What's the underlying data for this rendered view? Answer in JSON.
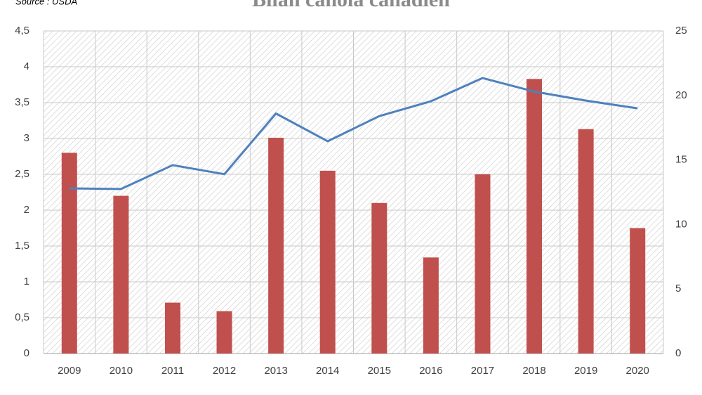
{
  "chart_data": {
    "type": "bar-line",
    "title": "Bilan canola canadien",
    "source": "Source : USDA",
    "categories": [
      "2009",
      "2010",
      "2011",
      "2012",
      "2013",
      "2014",
      "2015",
      "2016",
      "2017",
      "2018",
      "2019",
      "2020"
    ],
    "series": [
      {
        "type": "bar",
        "color": "#c0504d",
        "axis": "y",
        "values": [
          2.8,
          2.2,
          0.71,
          0.59,
          3.01,
          2.55,
          2.1,
          1.34,
          2.5,
          3.83,
          3.13,
          1.75
        ]
      },
      {
        "type": "line",
        "color": "#4f81bd",
        "axis": "y2",
        "values": [
          12.8,
          12.75,
          14.6,
          13.9,
          18.6,
          16.45,
          18.4,
          19.55,
          21.35,
          20.3,
          19.6,
          19.0
        ]
      }
    ],
    "ylim": [
      0,
      4.5
    ],
    "yticks": [
      0,
      {
        "value": 0.5,
        "label": "0,5"
      },
      1,
      {
        "value": 1.5,
        "label": "1,5"
      },
      2,
      {
        "value": 2.5,
        "label": "2,5"
      },
      3,
      {
        "value": 3.5,
        "label": "3,5"
      },
      4,
      {
        "value": 4.5,
        "label": "4,5"
      }
    ],
    "y2lim": [
      0,
      25
    ],
    "y2ticks": [
      0,
      5,
      10,
      15,
      20,
      25
    ],
    "grid": true
  }
}
